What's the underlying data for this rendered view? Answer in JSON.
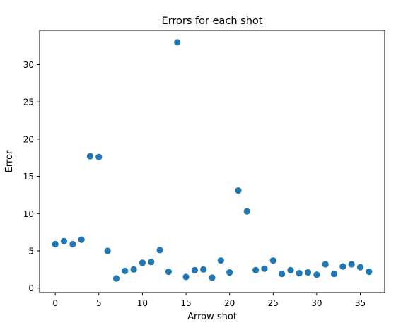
{
  "chart_data": {
    "type": "scatter",
    "title": "Errors for each shot",
    "xlabel": "Arrow shot",
    "ylabel": "Error",
    "xlim": [
      -1.8,
      37.8
    ],
    "ylim": [
      -0.6,
      34.6
    ],
    "xticks": [
      0,
      5,
      10,
      15,
      20,
      25,
      30,
      35
    ],
    "yticks": [
      0,
      5,
      10,
      15,
      20,
      25,
      30
    ],
    "grid": false,
    "color": "#1f77b4",
    "series": [
      {
        "x": [
          0,
          1,
          2,
          3,
          4,
          5,
          6,
          7,
          8,
          9,
          10,
          11,
          12,
          13,
          14,
          15,
          16,
          17,
          18,
          19,
          20,
          21,
          22,
          23,
          24,
          25,
          26,
          27,
          28,
          29,
          30,
          31,
          32,
          33,
          34,
          35,
          36
        ],
        "y": [
          5.9,
          6.3,
          5.9,
          6.5,
          17.7,
          17.6,
          5.0,
          1.3,
          2.3,
          2.5,
          3.4,
          3.5,
          5.1,
          2.2,
          33.0,
          1.5,
          2.4,
          2.5,
          1.4,
          3.7,
          2.1,
          13.1,
          10.3,
          2.4,
          2.6,
          3.7,
          1.9,
          2.4,
          2.0,
          2.1,
          1.8,
          3.2,
          1.9,
          2.9,
          3.2,
          2.8,
          2.2
        ]
      }
    ]
  }
}
